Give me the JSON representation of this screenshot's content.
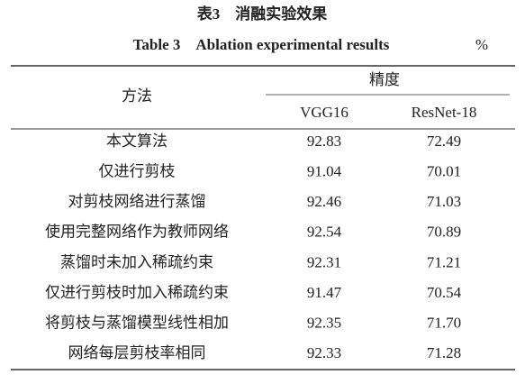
{
  "caption_cn": "表3　消融实验效果",
  "caption_en": "Table 3　Ablation experimental results",
  "unit": "%",
  "table": {
    "method_header": "方法",
    "group_header": "精度",
    "columns": [
      "VGG16",
      "ResNet-18"
    ],
    "rows": [
      [
        "本文算法",
        "92.83",
        "72.49"
      ],
      [
        "仅进行剪枝",
        "91.04",
        "70.01"
      ],
      [
        "对剪枝网络进行蒸馏",
        "92.46",
        "71.03"
      ],
      [
        "使用完整网络作为教师网络",
        "92.54",
        "70.89"
      ],
      [
        "蒸馏时未加入稀疏约束",
        "92.31",
        "71.21"
      ],
      [
        "仅进行剪枝时加入稀疏约束",
        "91.47",
        "70.54"
      ],
      [
        "将剪枝与蒸馏模型线性相加",
        "92.35",
        "71.70"
      ],
      [
        "网络每层剪枝率相同",
        "92.33",
        "71.28"
      ]
    ]
  }
}
